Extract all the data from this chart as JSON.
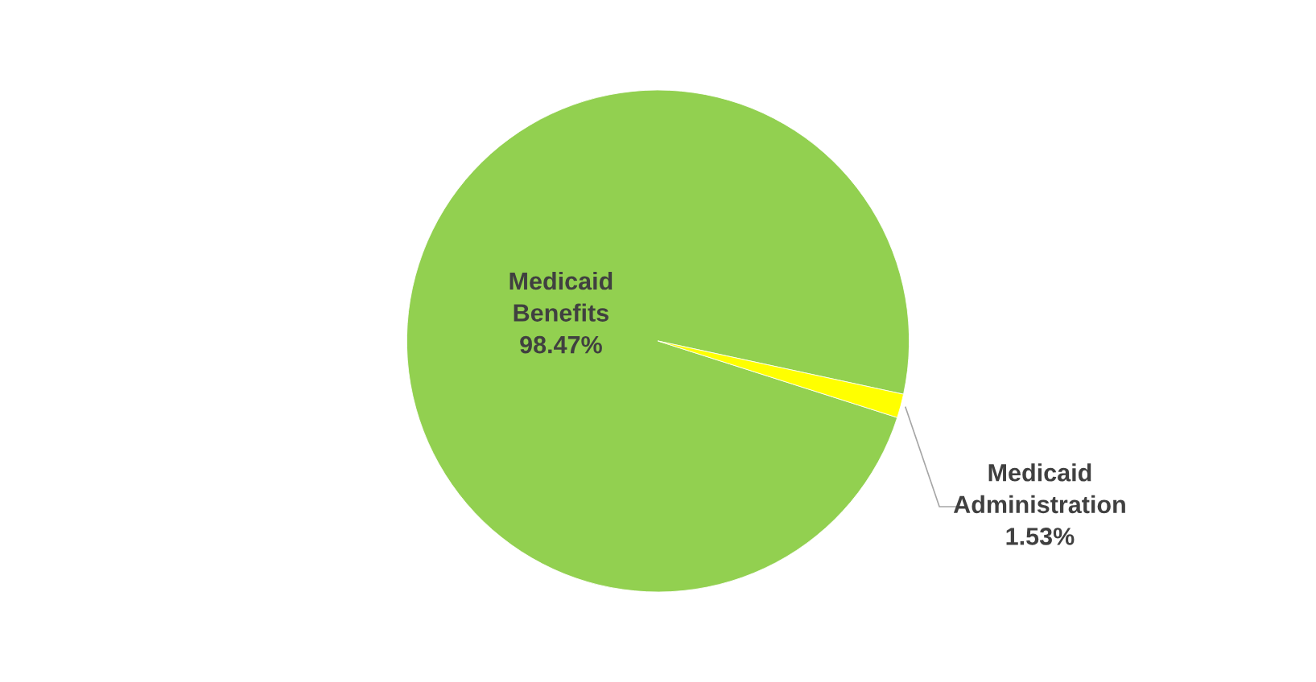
{
  "chart_data": {
    "type": "pie",
    "categories": [
      "Medicaid Benefits",
      "Medicaid Administration"
    ],
    "values": [
      98.47,
      1.53
    ],
    "value_labels": [
      "98.47%",
      "1.53%"
    ],
    "colors": [
      "#92d050",
      "#ffff00"
    ],
    "legend": false
  }
}
